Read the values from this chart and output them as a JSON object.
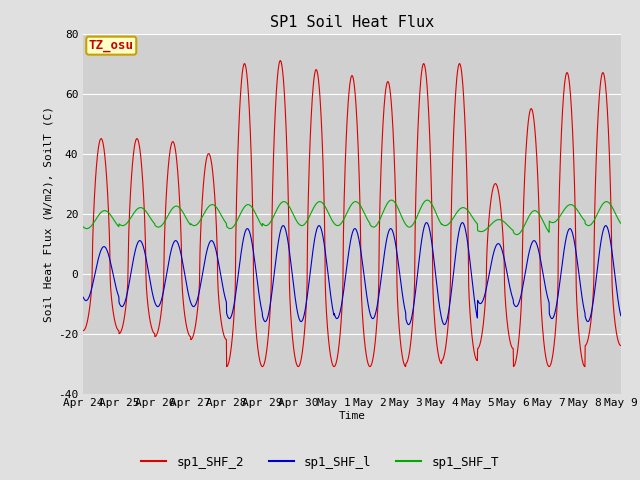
{
  "title": "SP1 Soil Heat Flux",
  "ylabel": "Soil Heat Flux (W/m2), SoilT (C)",
  "xlabel": "Time",
  "ylim": [
    -40,
    80
  ],
  "fig_bg_color": "#e0e0e0",
  "plot_bg_color": "#d0d0d0",
  "annotation_text": "TZ_osu",
  "annotation_bg": "#ffffc8",
  "annotation_border": "#c8a000",
  "annotation_text_color": "#cc0000",
  "line_colors": {
    "sp1_SHF_2": "#dd0000",
    "sp1_SHF_l": "#0000cc",
    "sp1_SHF_T": "#00aa00"
  },
  "xtick_labels": [
    "Apr 24",
    "Apr 25",
    "Apr 26",
    "Apr 27",
    "Apr 28",
    "Apr 29",
    "Apr 30",
    "May 1",
    "May 2",
    "May 3",
    "May 4",
    "May 5",
    "May 6",
    "May 7",
    "May 8",
    "May 9"
  ],
  "ytick_labels": [
    "-40",
    "-20",
    "0",
    "20",
    "40",
    "60",
    "80"
  ],
  "ytick_values": [
    -40,
    -20,
    0,
    20,
    40,
    60,
    80
  ],
  "font_family": "DejaVu Sans Mono",
  "title_fontsize": 11,
  "axis_label_fontsize": 8,
  "tick_fontsize": 8,
  "legend_fontsize": 9
}
